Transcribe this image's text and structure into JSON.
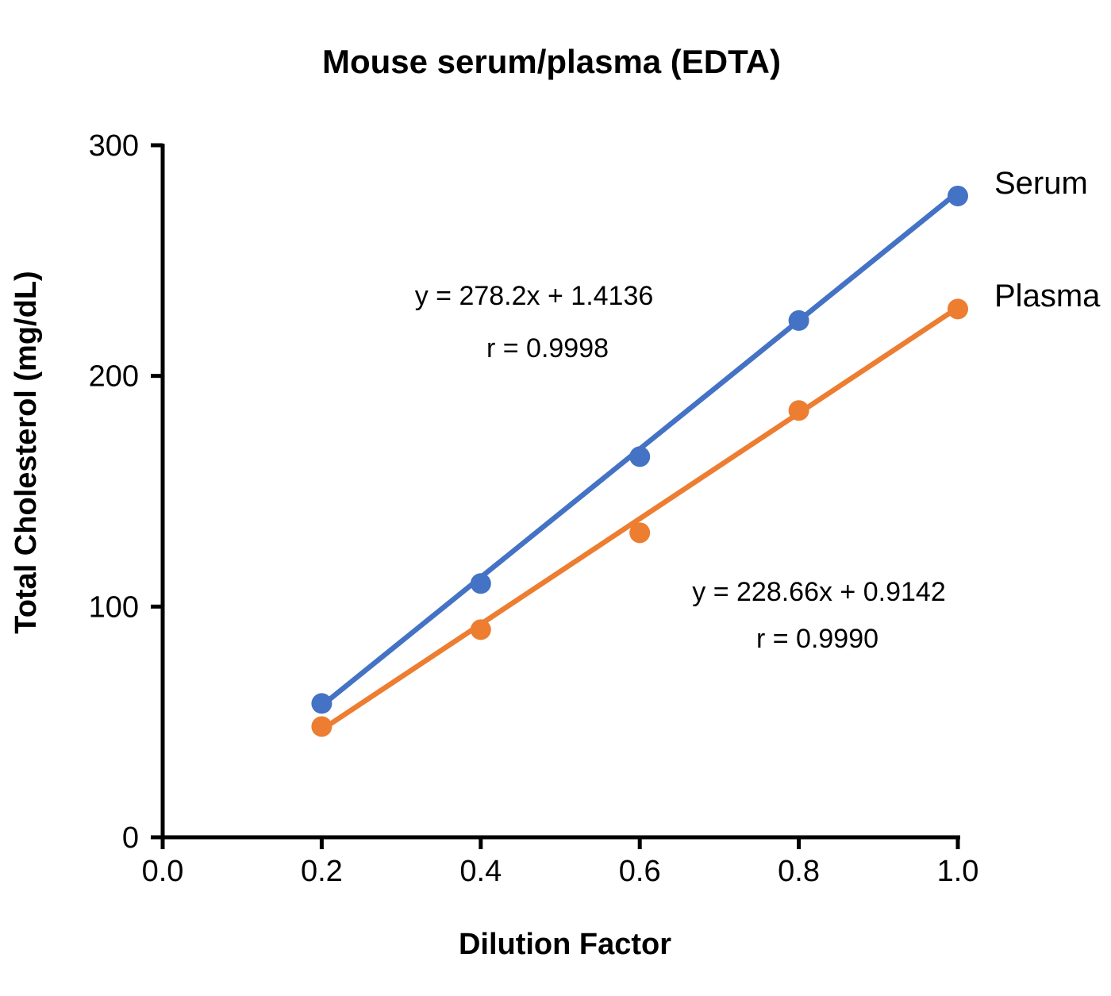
{
  "chart_data": {
    "type": "scatter",
    "title": "Mouse serum/plasma (EDTA)",
    "xlabel": "Dilution Factor",
    "ylabel": "Total Cholesterol (mg/dL)",
    "xlim": [
      0.0,
      1.0
    ],
    "ylim": [
      0,
      300
    ],
    "grid": false,
    "legend_position": "right-of-last-point",
    "x_ticks": {
      "values": [
        0.0,
        0.2,
        0.4,
        0.6,
        0.8,
        1.0
      ],
      "labels": [
        "0.0",
        "0.2",
        "0.4",
        "0.6",
        "0.8",
        "1.0"
      ]
    },
    "y_ticks": {
      "values": [
        0,
        100,
        200,
        300
      ],
      "labels": [
        "0",
        "100",
        "200",
        "300"
      ]
    },
    "series": [
      {
        "name": "Serum",
        "color": "#4472C4",
        "x": [
          0.2,
          0.4,
          0.6,
          0.8,
          1.0
        ],
        "y": [
          58,
          110,
          165,
          224,
          278
        ],
        "trendline": {
          "slope": 278.2,
          "intercept": 1.4136,
          "x_start": 0.2,
          "x_end": 1.0
        },
        "equation": "y = 278.2x + 1.4136",
        "r_text": "r = 0.9998"
      },
      {
        "name": "Plasma",
        "color": "#ED7D31",
        "x": [
          0.2,
          0.4,
          0.6,
          0.8,
          1.0
        ],
        "y": [
          48,
          90,
          132,
          185,
          229
        ],
        "trendline": {
          "slope": 228.66,
          "intercept": 0.9142,
          "x_start": 0.2,
          "x_end": 1.0
        },
        "equation": "y = 228.66x + 0.9142",
        "r_text": "r = 0.9990"
      }
    ],
    "axis_color": "#000000"
  }
}
